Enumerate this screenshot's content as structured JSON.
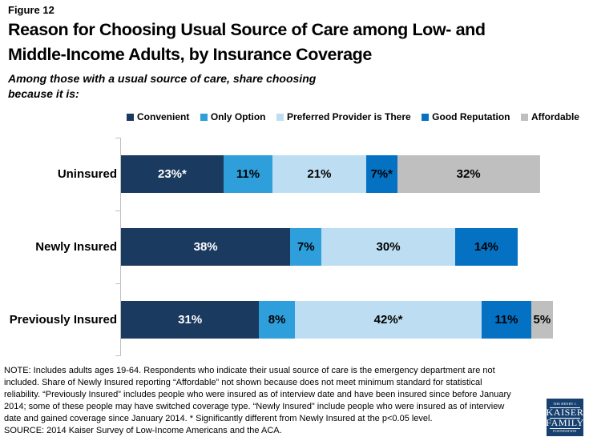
{
  "figure_label": "Figure 12",
  "title": {
    "line1": "Reason for Choosing Usual Source of Care among Low- and",
    "line2": "Middle-Income Adults, by Insurance Coverage"
  },
  "subtitle": {
    "line1": "Among those with a usual source of care, share choosing",
    "line2": "because it is:"
  },
  "chart_data": {
    "type": "bar",
    "stacked": true,
    "orientation": "horizontal",
    "unit": "percent",
    "xlim": [
      0,
      100
    ],
    "grid": false,
    "legend_position": "top",
    "categories": [
      "Uninsured",
      "Newly Insured",
      "Previously Insured"
    ],
    "series": [
      {
        "name": "Convenient",
        "color": "#1B3A5F",
        "label_color": "#FFFFFF",
        "values": [
          23,
          38,
          31
        ],
        "display": [
          "23%*",
          "38%",
          "31%"
        ]
      },
      {
        "name": "Only Option",
        "color": "#2E9FDA",
        "label_color": "#000000",
        "values": [
          11,
          7,
          8
        ],
        "display": [
          "11%",
          "7%",
          "8%"
        ]
      },
      {
        "name": "Preferred Provider is There",
        "color": "#BDDEF2",
        "label_color": "#000000",
        "values": [
          21,
          30,
          42
        ],
        "display": [
          "21%",
          "30%",
          "42%*"
        ]
      },
      {
        "name": "Good Reputation",
        "color": "#0571C2",
        "label_color": "#000000",
        "values": [
          7,
          14,
          11
        ],
        "display": [
          "7%*",
          "14%",
          "11%"
        ]
      },
      {
        "name": "Affordable",
        "color": "#BFBFBF",
        "label_color": "#000000",
        "values": [
          32,
          0,
          5
        ],
        "display": [
          "32%",
          "",
          "5%"
        ]
      }
    ]
  },
  "note": {
    "lines": [
      "NOTE: Includes adults ages 19-64. Respondents who indicate their usual source of care is the emergency department are not",
      "included. Share of Newly Insured reporting “Affordable” not shown because does not meet minimum standard for statistical",
      "reliability. “Previously Insured” includes people who were insured as of interview date and have been insured since before January",
      "2014; some of these people may have switched coverage type. “Newly Insured” include people who were insured as of interview",
      "date and gained coverage since January 2014. * Significantly different from Newly Insured at the p<0.05 level.",
      "SOURCE: 2014 Kaiser Survey of Low-Income Americans and the ACA."
    ]
  },
  "logo": {
    "line1": "THE HENRY J.",
    "line2": "KAISER",
    "line3": "FAMILY",
    "line4": "FOUNDATION"
  },
  "colors": {
    "axis": "#BFBFBF",
    "background": "#FFFFFF",
    "logo_navy": "#16406F"
  }
}
